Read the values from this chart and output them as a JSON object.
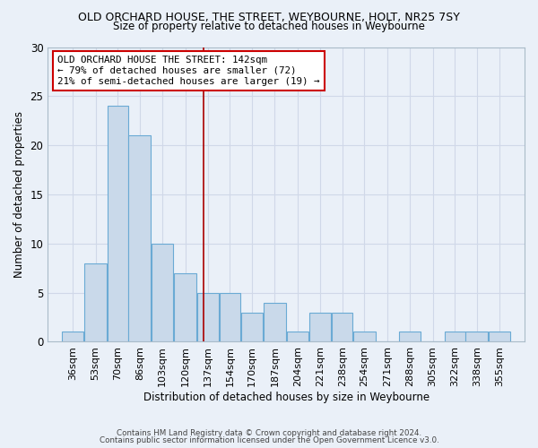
{
  "title": "OLD ORCHARD HOUSE, THE STREET, WEYBOURNE, HOLT, NR25 7SY",
  "subtitle": "Size of property relative to detached houses in Weybourne",
  "xlabel": "Distribution of detached houses by size in Weybourne",
  "ylabel": "Number of detached properties",
  "bar_color": "#c9d9ea",
  "bar_edgecolor": "#6aaad4",
  "grid_color": "#d0d8e8",
  "background_color": "#eaf0f8",
  "vline_x": 142,
  "vline_color": "#aa0000",
  "bin_edges": [
    36,
    53,
    70,
    86,
    103,
    120,
    137,
    154,
    170,
    187,
    204,
    221,
    238,
    254,
    271,
    288,
    305,
    322,
    338,
    355,
    372
  ],
  "bin_counts": [
    1,
    8,
    24,
    21,
    10,
    7,
    5,
    5,
    3,
    4,
    1,
    3,
    3,
    1,
    0,
    1,
    0,
    1,
    1,
    1
  ],
  "annotation_line1": "OLD ORCHARD HOUSE THE STREET: 142sqm",
  "annotation_line2": "← 79% of detached houses are smaller (72)",
  "annotation_line3": "21% of semi-detached houses are larger (19) →",
  "annotation_box_color": "#ffffff",
  "annotation_box_edgecolor": "#cc0000",
  "footnote1": "Contains HM Land Registry data © Crown copyright and database right 2024.",
  "footnote2": "Contains public sector information licensed under the Open Government Licence v3.0.",
  "ylim": [
    0,
    30
  ],
  "yticks": [
    0,
    5,
    10,
    15,
    20,
    25,
    30
  ]
}
